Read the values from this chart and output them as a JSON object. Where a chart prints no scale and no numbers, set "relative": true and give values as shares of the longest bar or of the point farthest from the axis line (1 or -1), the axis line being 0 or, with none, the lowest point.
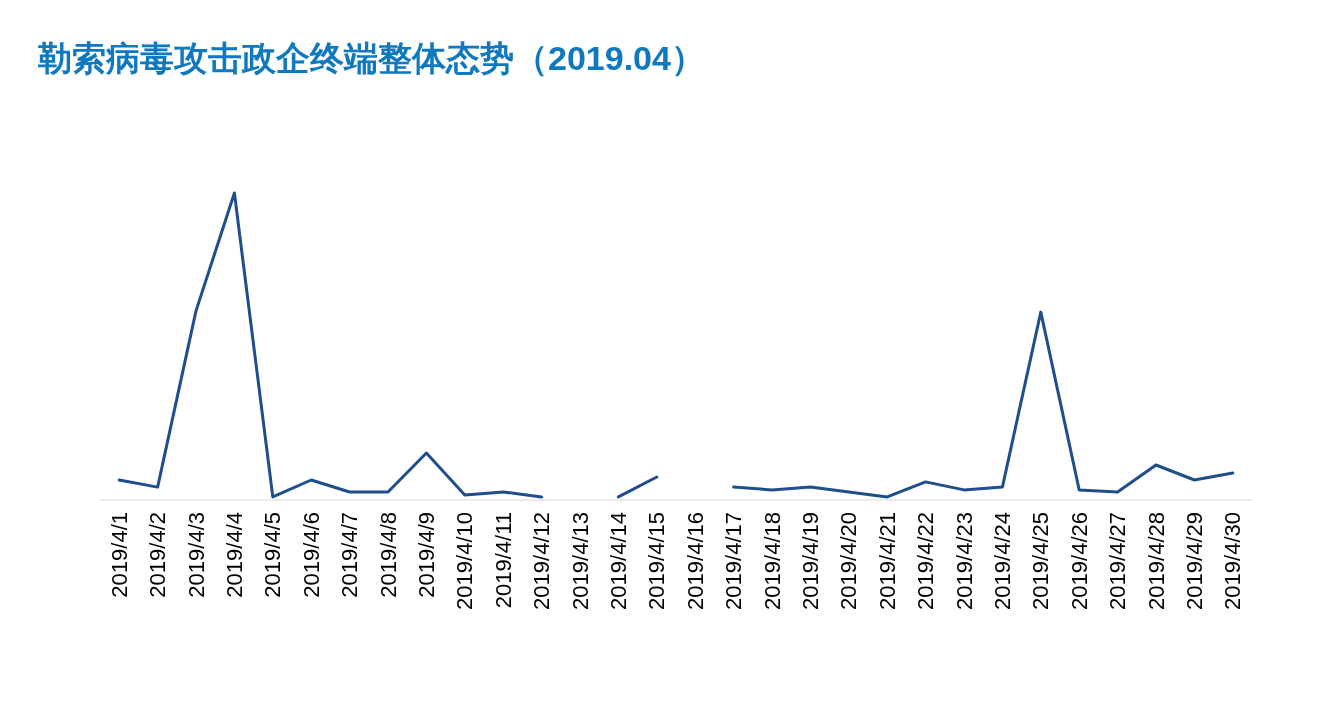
{
  "chart_data": {
    "type": "line",
    "title": "勒索病毒攻击政企终端整体态势（2019.04）",
    "relative": true,
    "categories": [
      "2019/4/1",
      "2019/4/2",
      "2019/4/3",
      "2019/4/4",
      "2019/4/5",
      "2019/4/6",
      "2019/4/7",
      "2019/4/8",
      "2019/4/9",
      "2019/4/10",
      "2019/4/11",
      "2019/4/12",
      "2019/4/13",
      "2019/4/14",
      "2019/4/15",
      "2019/4/16",
      "2019/4/17",
      "2019/4/18",
      "2019/4/19",
      "2019/4/20",
      "2019/4/21",
      "2019/4/22",
      "2019/4/23",
      "2019/4/24",
      "2019/4/25",
      "2019/4/26",
      "2019/4/27",
      "2019/4/28",
      "2019/4/29",
      "2019/4/30"
    ],
    "series": [
      {
        "color": "#1f4e8c",
        "values": [
          0.065,
          0.042,
          0.616,
          1,
          0.01,
          0.065,
          0.026,
          0.026,
          0.153,
          0.016,
          0.026,
          0.01,
          null,
          0.01,
          0.075,
          null,
          0.042,
          0.033,
          0.042,
          0.026,
          0.01,
          0.059,
          0.033,
          0.042,
          0.612,
          0.033,
          0.026,
          0.114,
          0.065,
          0.088
        ]
      }
    ]
  }
}
